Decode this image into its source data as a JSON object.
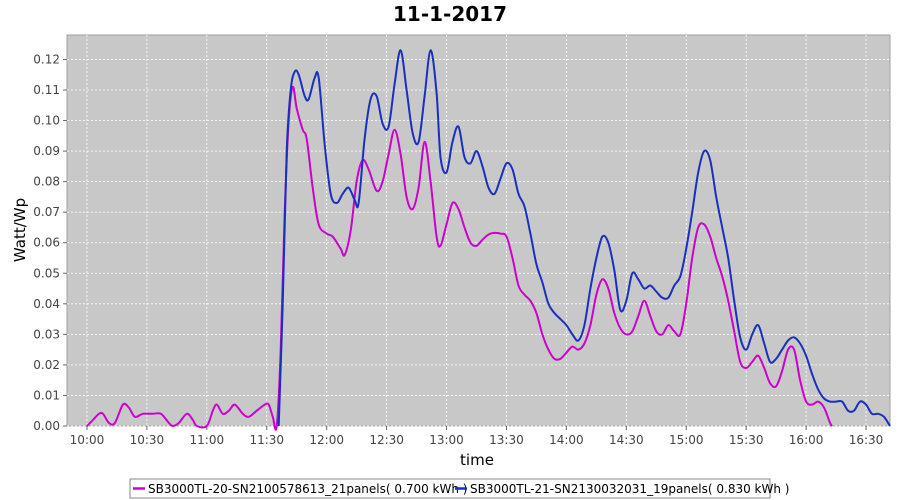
{
  "chart_data": {
    "type": "line",
    "title": "11-1-2017",
    "xlabel": "time",
    "ylabel": "Watt/Wp",
    "grid": true,
    "legend_position": "bottom",
    "x_unit": "time of day",
    "x_range": [
      "09:50",
      "16:42"
    ],
    "x_ticks": [
      "10:00",
      "10:30",
      "11:00",
      "11:30",
      "12:00",
      "12:30",
      "13:00",
      "13:30",
      "14:00",
      "14:30",
      "15:00",
      "15:30",
      "16:00",
      "16:30"
    ],
    "ylim": [
      0,
      0.128
    ],
    "y_ticks": [
      "0.00",
      "0.01",
      "0.02",
      "0.03",
      "0.04",
      "0.05",
      "0.06",
      "0.07",
      "0.08",
      "0.09",
      "0.10",
      "0.11",
      "0.12"
    ],
    "colors": {
      "plot_background": "#c8c8c8",
      "gridline": "#ffffff"
    },
    "series": [
      {
        "name": "SB3000TL-20-SN2100578613_21panels( 0.700 kWh )",
        "color": "#cc00cc",
        "points": [
          [
            "10:00",
            0.0
          ],
          [
            "10:03",
            0.002
          ],
          [
            "10:06",
            0.004
          ],
          [
            "10:08",
            0.004
          ],
          [
            "10:11",
            0.001
          ],
          [
            "10:14",
            0.001
          ],
          [
            "10:18",
            0.007
          ],
          [
            "10:21",
            0.006
          ],
          [
            "10:24",
            0.003
          ],
          [
            "10:28",
            0.004
          ],
          [
            "10:33",
            0.004
          ],
          [
            "10:37",
            0.004
          ],
          [
            "10:41",
            0.001
          ],
          [
            "10:43",
            0.0
          ],
          [
            "10:46",
            0.001
          ],
          [
            "10:50",
            0.004
          ],
          [
            "10:53",
            0.002
          ],
          [
            "10:55",
            0.0
          ],
          [
            "11:00",
            0.0
          ],
          [
            "11:03",
            0.005
          ],
          [
            "11:05",
            0.007
          ],
          [
            "11:08",
            0.004
          ],
          [
            "11:11",
            0.005
          ],
          [
            "11:14",
            0.007
          ],
          [
            "11:18",
            0.004
          ],
          [
            "11:21",
            0.003
          ],
          [
            "11:25",
            0.005
          ],
          [
            "11:29",
            0.007
          ],
          [
            "11:31",
            0.007
          ],
          [
            "11:33",
            0.003
          ],
          [
            "11:35",
            0.0
          ],
          [
            "11:37",
            0.025
          ],
          [
            "11:39",
            0.07
          ],
          [
            "11:41",
            0.1
          ],
          [
            "11:43",
            0.111
          ],
          [
            "11:45",
            0.104
          ],
          [
            "11:48",
            0.097
          ],
          [
            "11:50",
            0.094
          ],
          [
            "11:53",
            0.078
          ],
          [
            "11:56",
            0.066
          ],
          [
            "12:00",
            0.063
          ],
          [
            "12:03",
            0.062
          ],
          [
            "12:07",
            0.058
          ],
          [
            "12:09",
            0.056
          ],
          [
            "12:12",
            0.064
          ],
          [
            "12:15",
            0.08
          ],
          [
            "12:18",
            0.087
          ],
          [
            "12:21",
            0.084
          ],
          [
            "12:25",
            0.077
          ],
          [
            "12:28",
            0.08
          ],
          [
            "12:31",
            0.089
          ],
          [
            "12:34",
            0.097
          ],
          [
            "12:37",
            0.089
          ],
          [
            "12:40",
            0.075
          ],
          [
            "12:43",
            0.071
          ],
          [
            "12:46",
            0.078
          ],
          [
            "12:49",
            0.093
          ],
          [
            "12:52",
            0.08
          ],
          [
            "12:55",
            0.062
          ],
          [
            "12:57",
            0.059
          ],
          [
            "13:00",
            0.066
          ],
          [
            "13:03",
            0.073
          ],
          [
            "13:06",
            0.071
          ],
          [
            "13:09",
            0.065
          ],
          [
            "13:12",
            0.06
          ],
          [
            "13:15",
            0.059
          ],
          [
            "13:18",
            0.061
          ],
          [
            "13:22",
            0.063
          ],
          [
            "13:27",
            0.063
          ],
          [
            "13:30",
            0.062
          ],
          [
            "13:33",
            0.055
          ],
          [
            "13:36",
            0.046
          ],
          [
            "13:39",
            0.043
          ],
          [
            "13:42",
            0.041
          ],
          [
            "13:45",
            0.037
          ],
          [
            "13:48",
            0.03
          ],
          [
            "13:51",
            0.025
          ],
          [
            "13:54",
            0.022
          ],
          [
            "13:57",
            0.022
          ],
          [
            "14:00",
            0.024
          ],
          [
            "14:03",
            0.026
          ],
          [
            "14:06",
            0.025
          ],
          [
            "14:09",
            0.027
          ],
          [
            "14:12",
            0.033
          ],
          [
            "14:15",
            0.043
          ],
          [
            "14:18",
            0.048
          ],
          [
            "14:21",
            0.045
          ],
          [
            "14:24",
            0.037
          ],
          [
            "14:27",
            0.032
          ],
          [
            "14:30",
            0.03
          ],
          [
            "14:33",
            0.031
          ],
          [
            "14:36",
            0.036
          ],
          [
            "14:39",
            0.041
          ],
          [
            "14:42",
            0.036
          ],
          [
            "14:45",
            0.031
          ],
          [
            "14:48",
            0.03
          ],
          [
            "14:51",
            0.033
          ],
          [
            "14:54",
            0.031
          ],
          [
            "14:57",
            0.03
          ],
          [
            "15:00",
            0.04
          ],
          [
            "15:03",
            0.055
          ],
          [
            "15:06",
            0.065
          ],
          [
            "15:09",
            0.066
          ],
          [
            "15:12",
            0.062
          ],
          [
            "15:15",
            0.055
          ],
          [
            "15:18",
            0.049
          ],
          [
            "15:21",
            0.041
          ],
          [
            "15:24",
            0.031
          ],
          [
            "15:27",
            0.021
          ],
          [
            "15:30",
            0.019
          ],
          [
            "15:33",
            0.021
          ],
          [
            "15:36",
            0.023
          ],
          [
            "15:39",
            0.019
          ],
          [
            "15:42",
            0.014
          ],
          [
            "15:45",
            0.013
          ],
          [
            "15:48",
            0.018
          ],
          [
            "15:51",
            0.025
          ],
          [
            "15:54",
            0.025
          ],
          [
            "15:57",
            0.015
          ],
          [
            "16:00",
            0.008
          ],
          [
            "16:03",
            0.007
          ],
          [
            "16:06",
            0.008
          ],
          [
            "16:09",
            0.006
          ],
          [
            "16:12",
            0.001
          ],
          [
            "16:13",
            0.0
          ]
        ]
      },
      {
        "name": "SB3000TL-21-SN2130032031_19panels( 0.830 kWh )",
        "color": "#1a2fc0",
        "points": [
          [
            "11:36",
            0.0
          ],
          [
            "11:38",
            0.04
          ],
          [
            "11:40",
            0.09
          ],
          [
            "11:42",
            0.11
          ],
          [
            "11:44",
            0.116
          ],
          [
            "11:46",
            0.115
          ],
          [
            "11:49",
            0.108
          ],
          [
            "11:51",
            0.107
          ],
          [
            "11:54",
            0.114
          ],
          [
            "11:56",
            0.114
          ],
          [
            "11:59",
            0.092
          ],
          [
            "12:02",
            0.076
          ],
          [
            "12:05",
            0.073
          ],
          [
            "12:08",
            0.076
          ],
          [
            "12:11",
            0.078
          ],
          [
            "12:14",
            0.074
          ],
          [
            "12:16",
            0.073
          ],
          [
            "12:19",
            0.094
          ],
          [
            "12:22",
            0.107
          ],
          [
            "12:25",
            0.108
          ],
          [
            "12:28",
            0.099
          ],
          [
            "12:31",
            0.098
          ],
          [
            "12:34",
            0.112
          ],
          [
            "12:37",
            0.123
          ],
          [
            "12:40",
            0.11
          ],
          [
            "12:43",
            0.096
          ],
          [
            "12:46",
            0.093
          ],
          [
            "12:49",
            0.108
          ],
          [
            "12:52",
            0.123
          ],
          [
            "12:55",
            0.109
          ],
          [
            "12:57",
            0.088
          ],
          [
            "13:00",
            0.083
          ],
          [
            "13:03",
            0.093
          ],
          [
            "13:06",
            0.098
          ],
          [
            "13:09",
            0.088
          ],
          [
            "13:12",
            0.086
          ],
          [
            "13:15",
            0.09
          ],
          [
            "13:18",
            0.085
          ],
          [
            "13:21",
            0.078
          ],
          [
            "13:24",
            0.076
          ],
          [
            "13:27",
            0.081
          ],
          [
            "13:30",
            0.086
          ],
          [
            "13:33",
            0.084
          ],
          [
            "13:36",
            0.076
          ],
          [
            "13:39",
            0.072
          ],
          [
            "13:42",
            0.063
          ],
          [
            "13:45",
            0.053
          ],
          [
            "13:48",
            0.047
          ],
          [
            "13:51",
            0.04
          ],
          [
            "13:54",
            0.037
          ],
          [
            "13:57",
            0.035
          ],
          [
            "14:00",
            0.033
          ],
          [
            "14:03",
            0.03
          ],
          [
            "14:06",
            0.028
          ],
          [
            "14:09",
            0.033
          ],
          [
            "14:12",
            0.045
          ],
          [
            "14:15",
            0.055
          ],
          [
            "14:18",
            0.062
          ],
          [
            "14:21",
            0.06
          ],
          [
            "14:24",
            0.051
          ],
          [
            "14:27",
            0.038
          ],
          [
            "14:30",
            0.041
          ],
          [
            "14:33",
            0.05
          ],
          [
            "14:36",
            0.048
          ],
          [
            "14:39",
            0.045
          ],
          [
            "14:42",
            0.046
          ],
          [
            "14:45",
            0.044
          ],
          [
            "14:48",
            0.042
          ],
          [
            "14:51",
            0.042
          ],
          [
            "14:54",
            0.046
          ],
          [
            "14:57",
            0.049
          ],
          [
            "15:00",
            0.058
          ],
          [
            "15:03",
            0.07
          ],
          [
            "15:06",
            0.083
          ],
          [
            "15:09",
            0.09
          ],
          [
            "15:12",
            0.087
          ],
          [
            "15:15",
            0.075
          ],
          [
            "15:18",
            0.065
          ],
          [
            "15:21",
            0.055
          ],
          [
            "15:24",
            0.041
          ],
          [
            "15:27",
            0.029
          ],
          [
            "15:30",
            0.025
          ],
          [
            "15:33",
            0.03
          ],
          [
            "15:36",
            0.033
          ],
          [
            "15:39",
            0.027
          ],
          [
            "15:42",
            0.021
          ],
          [
            "15:45",
            0.022
          ],
          [
            "15:48",
            0.025
          ],
          [
            "15:51",
            0.028
          ],
          [
            "15:54",
            0.029
          ],
          [
            "15:57",
            0.027
          ],
          [
            "16:00",
            0.023
          ],
          [
            "16:03",
            0.017
          ],
          [
            "16:06",
            0.012
          ],
          [
            "16:09",
            0.009
          ],
          [
            "16:12",
            0.008
          ],
          [
            "16:15",
            0.008
          ],
          [
            "16:18",
            0.008
          ],
          [
            "16:21",
            0.005
          ],
          [
            "16:24",
            0.005
          ],
          [
            "16:27",
            0.008
          ],
          [
            "16:30",
            0.007
          ],
          [
            "16:33",
            0.004
          ],
          [
            "16:36",
            0.004
          ],
          [
            "16:39",
            0.003
          ],
          [
            "16:42",
            0.0
          ]
        ]
      }
    ]
  }
}
